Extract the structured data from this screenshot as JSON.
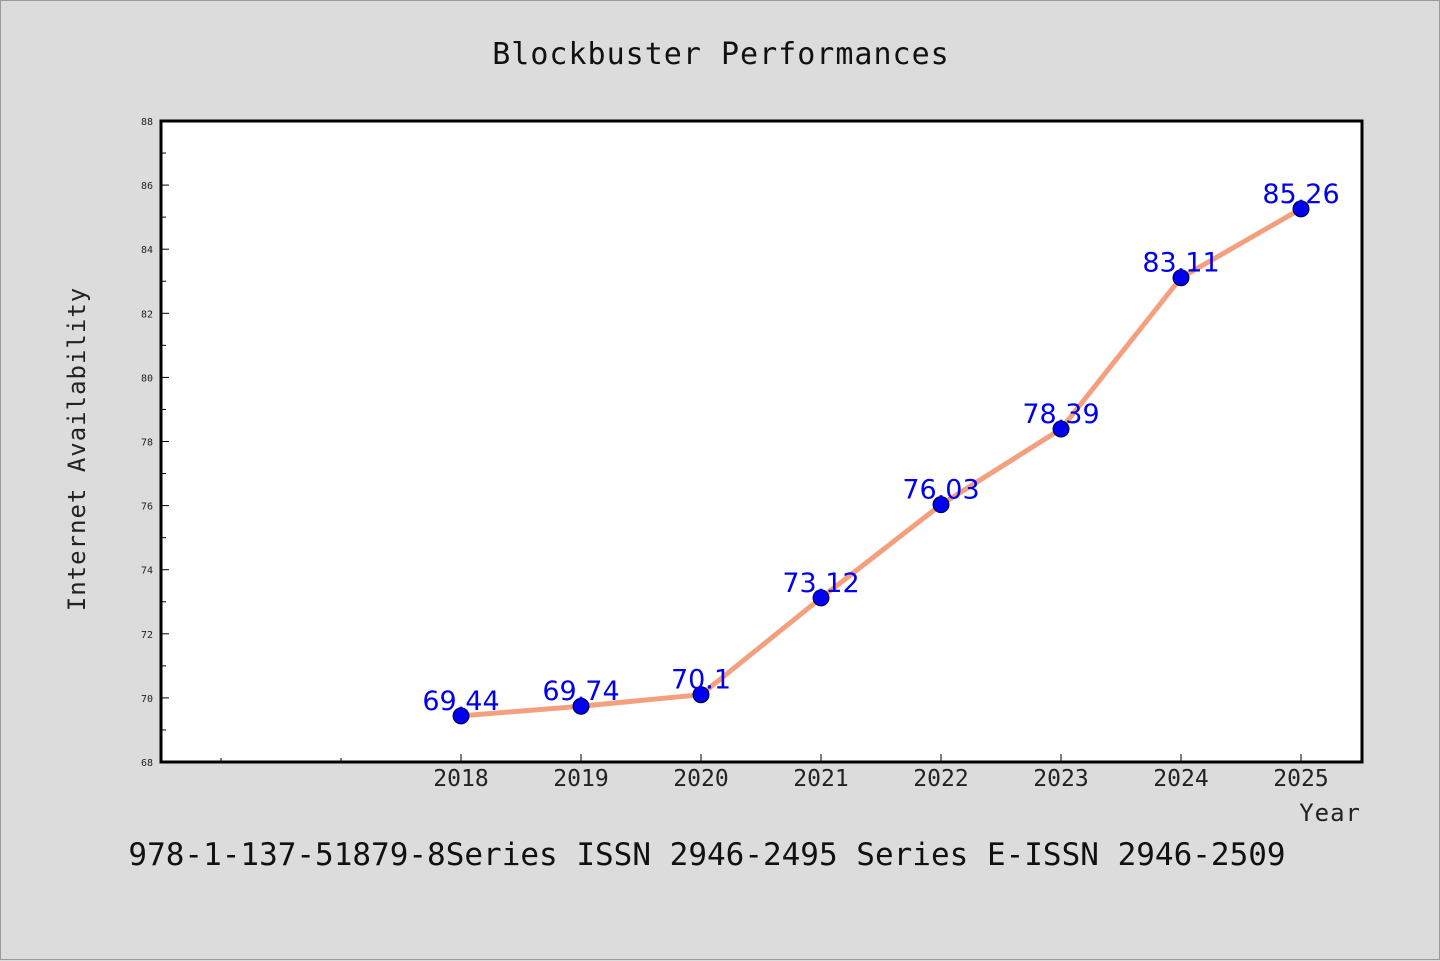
{
  "chart_data": {
    "type": "line",
    "title": "Blockbuster Performances",
    "xlabel": "Year",
    "ylabel": "Internet Availability",
    "categories": [
      "2018",
      "2019",
      "2020",
      "2021",
      "2022",
      "2023",
      "2024",
      "2025"
    ],
    "series": [
      {
        "values": [
          69.44,
          69.74,
          70.1,
          73.12,
          76.03,
          78.39,
          83.11,
          85.26
        ],
        "labels": [
          "69.44",
          "69.74",
          "70.1",
          "73.12",
          "76.03",
          "78.39",
          "83.11",
          "85.26"
        ]
      }
    ],
    "ylim": [
      68,
      88
    ],
    "yticks": [
      "68",
      "70",
      "72",
      "74",
      "76",
      "78",
      "80",
      "82",
      "84",
      "86",
      "88"
    ],
    "grid": false,
    "line_color": "#f4a07f",
    "marker_color": "#0000ee",
    "label_color": "#0000ee",
    "background_color": "#dcdcdc",
    "plot_background": "#ffffff"
  },
  "footer_text": "978-1-137-51879-8Series ISSN 2946-2495 Series E-ISSN 2946-2509"
}
